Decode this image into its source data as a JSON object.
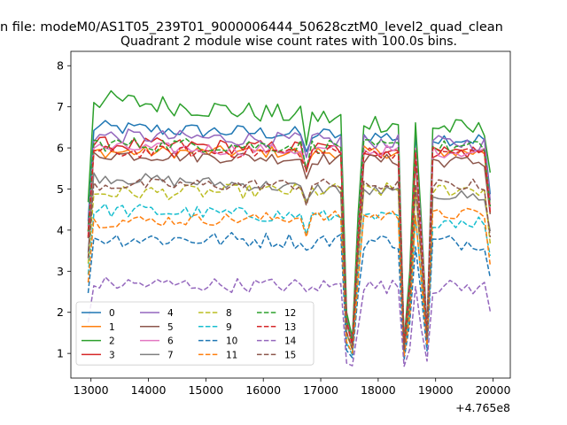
{
  "chart_data": {
    "type": "line",
    "suptitle": "n file: modeM0/AS1T05_239T01_9000006444_50628cztM0_level2_quad_clean",
    "title": "Quadrant 2 module wise count rates with 100.0s bins.",
    "xlabel": "",
    "ylabel": "",
    "offset_label": "+4.765e8",
    "xlim": [
      12650,
      20300
    ],
    "ylim": [
      0.4,
      8.35
    ],
    "x_ticks": [
      "13000",
      "14000",
      "15000",
      "16000",
      "17000",
      "18000",
      "19000",
      "20000"
    ],
    "y_ticks": [
      "1",
      "2",
      "3",
      "4",
      "5",
      "6",
      "7",
      "8"
    ],
    "x_start": 12950,
    "x_step": 100,
    "legend_position": "lower-left",
    "legend_columns": 4,
    "series": [
      {
        "name": "0",
        "color": "#1f77b4",
        "dash": "solid",
        "base": 6.5,
        "amp": 0.18,
        "trend": -0.3
      },
      {
        "name": "1",
        "color": "#ff7f0e",
        "dash": "solid",
        "base": 5.9,
        "amp": 0.15,
        "trend": 0.0
      },
      {
        "name": "2",
        "color": "#2ca02c",
        "dash": "solid",
        "base": 7.2,
        "amp": 0.25,
        "trend": -0.8
      },
      {
        "name": "3",
        "color": "#d62728",
        "dash": "solid",
        "base": 6.1,
        "amp": 0.18,
        "trend": -0.2
      },
      {
        "name": "4",
        "color": "#9467bd",
        "dash": "solid",
        "base": 6.3,
        "amp": 0.18,
        "trend": -0.2
      },
      {
        "name": "5",
        "color": "#8c564b",
        "dash": "solid",
        "base": 5.85,
        "amp": 0.15,
        "trend": -0.2
      },
      {
        "name": "6",
        "color": "#e377c2",
        "dash": "solid",
        "base": 6.0,
        "amp": 0.15,
        "trend": -0.1
      },
      {
        "name": "7",
        "color": "#7f7f7f",
        "dash": "solid",
        "base": 5.3,
        "amp": 0.15,
        "trend": -0.5
      },
      {
        "name": "8",
        "color": "#bcbd22",
        "dash": "dashed",
        "base": 4.9,
        "amp": 0.18,
        "trend": 0.1
      },
      {
        "name": "9",
        "color": "#17becf",
        "dash": "dashed",
        "base": 4.5,
        "amp": 0.18,
        "trend": -0.3
      },
      {
        "name": "10",
        "color": "#1f77b4",
        "dash": "dashed",
        "base": 3.8,
        "amp": 0.2,
        "trend": -0.1
      },
      {
        "name": "11",
        "color": "#ff7f0e",
        "dash": "dashed",
        "base": 4.2,
        "amp": 0.15,
        "trend": 0.2
      },
      {
        "name": "12",
        "color": "#2ca02c",
        "dash": "dashed",
        "base": 6.1,
        "amp": 0.18,
        "trend": -0.1
      },
      {
        "name": "13",
        "color": "#d62728",
        "dash": "dashed",
        "base": 5.9,
        "amp": 0.15,
        "trend": 0.0
      },
      {
        "name": "14",
        "color": "#9467bd",
        "dash": "dashed",
        "base": 2.7,
        "amp": 0.18,
        "trend": -0.1
      },
      {
        "name": "15",
        "color": "#8c564b",
        "dash": "dashed",
        "base": 5.1,
        "amp": 0.15,
        "trend": 0.0
      }
    ],
    "dips": [
      {
        "at": 17450,
        "depth": 0.7
      },
      {
        "at": 17550,
        "depth": 0.84
      },
      {
        "at": 17650,
        "depth": 0.35
      },
      {
        "at": 18450,
        "depth": 0.85
      },
      {
        "at": 18550,
        "depth": 0.55
      },
      {
        "at": 18750,
        "depth": 0.35
      },
      {
        "at": 18850,
        "depth": 0.8
      },
      {
        "at": 19950,
        "depth": 0.3
      }
    ]
  }
}
